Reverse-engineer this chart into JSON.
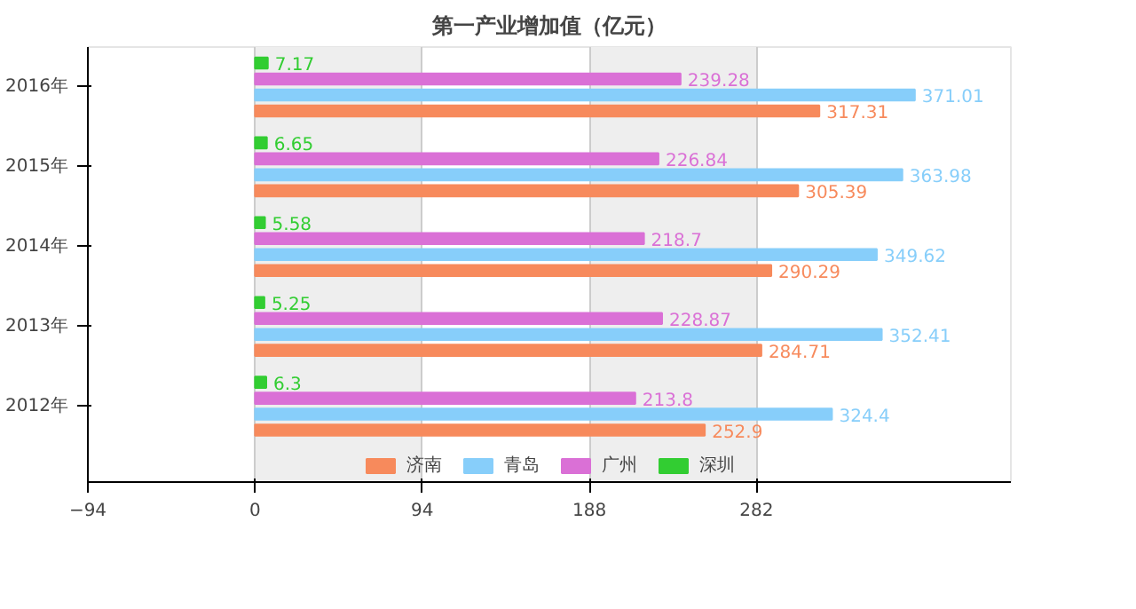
{
  "chart_data": {
    "type": "bar",
    "orientation": "horizontal",
    "title": "第一产业增加值（亿元）",
    "categories": [
      "2016年",
      "2015年",
      "2014年",
      "2013年",
      "2012年"
    ],
    "series": [
      {
        "name": "济南",
        "color": "#f78a5c",
        "values": [
          317.31,
          305.39,
          290.29,
          284.71,
          252.9
        ]
      },
      {
        "name": "青岛",
        "color": "#87cefa",
        "values": [
          371.01,
          363.98,
          349.62,
          352.41,
          324.4
        ]
      },
      {
        "name": "广州",
        "color": "#da70d6",
        "values": [
          239.28,
          226.84,
          218.7,
          228.87,
          213.8
        ]
      },
      {
        "name": "深圳",
        "color": "#32cd32",
        "values": [
          7.17,
          6.65,
          5.58,
          5.25,
          6.3
        ]
      }
    ],
    "xlim": [
      -94,
      425
    ],
    "xticks": [
      -94,
      0,
      94,
      188,
      282
    ],
    "grid": "x",
    "legend": "bottom",
    "data_labels": true
  }
}
